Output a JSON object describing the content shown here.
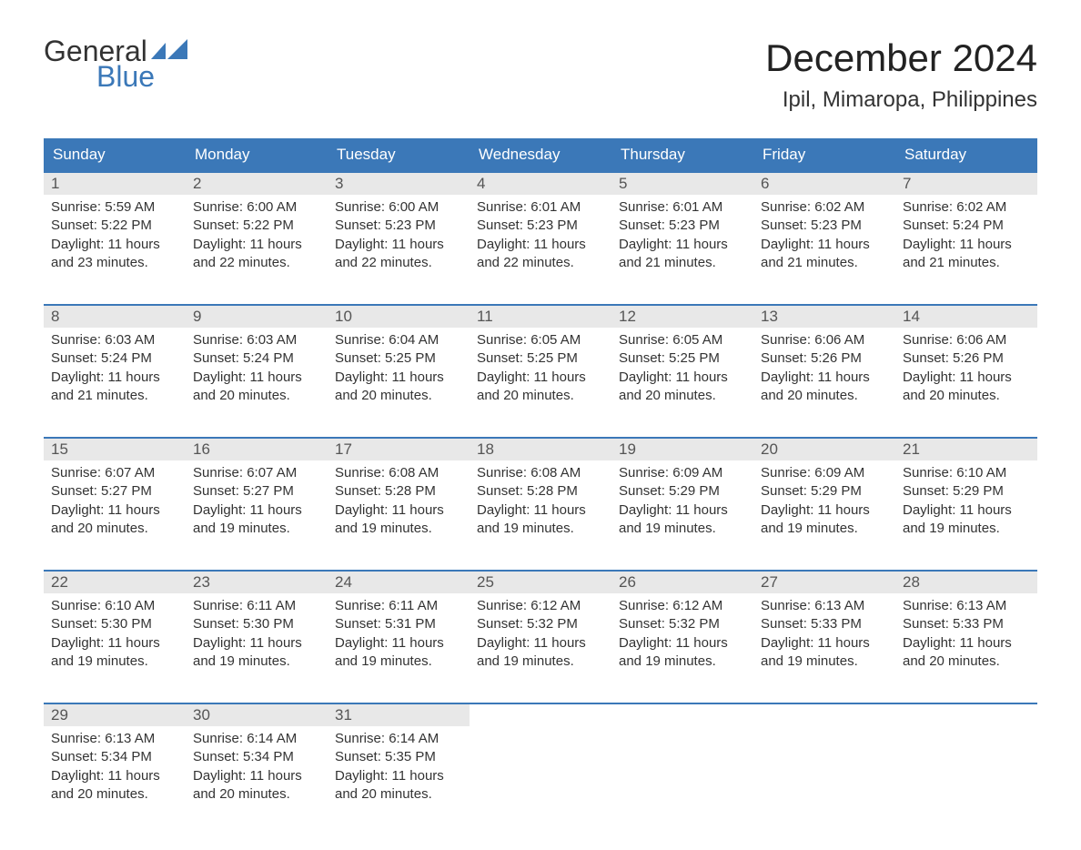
{
  "logo": {
    "word1": "General",
    "word2": "Blue"
  },
  "month_title": "December 2024",
  "location": "Ipil, Mimaropa, Philippines",
  "colors": {
    "header_bg": "#3b78b8",
    "header_text": "#ffffff",
    "daynum_bg": "#e8e8e8",
    "week_border": "#3b78b8",
    "logo_blue": "#3b78b8",
    "body_text": "#333333",
    "page_bg": "#ffffff"
  },
  "day_headers": [
    "Sunday",
    "Monday",
    "Tuesday",
    "Wednesday",
    "Thursday",
    "Friday",
    "Saturday"
  ],
  "weeks": [
    [
      {
        "n": "1",
        "sr": "5:59 AM",
        "ss": "5:22 PM",
        "dl1": "11 hours",
        "dl2": "and 23 minutes."
      },
      {
        "n": "2",
        "sr": "6:00 AM",
        "ss": "5:22 PM",
        "dl1": "11 hours",
        "dl2": "and 22 minutes."
      },
      {
        "n": "3",
        "sr": "6:00 AM",
        "ss": "5:23 PM",
        "dl1": "11 hours",
        "dl2": "and 22 minutes."
      },
      {
        "n": "4",
        "sr": "6:01 AM",
        "ss": "5:23 PM",
        "dl1": "11 hours",
        "dl2": "and 22 minutes."
      },
      {
        "n": "5",
        "sr": "6:01 AM",
        "ss": "5:23 PM",
        "dl1": "11 hours",
        "dl2": "and 21 minutes."
      },
      {
        "n": "6",
        "sr": "6:02 AM",
        "ss": "5:23 PM",
        "dl1": "11 hours",
        "dl2": "and 21 minutes."
      },
      {
        "n": "7",
        "sr": "6:02 AM",
        "ss": "5:24 PM",
        "dl1": "11 hours",
        "dl2": "and 21 minutes."
      }
    ],
    [
      {
        "n": "8",
        "sr": "6:03 AM",
        "ss": "5:24 PM",
        "dl1": "11 hours",
        "dl2": "and 21 minutes."
      },
      {
        "n": "9",
        "sr": "6:03 AM",
        "ss": "5:24 PM",
        "dl1": "11 hours",
        "dl2": "and 20 minutes."
      },
      {
        "n": "10",
        "sr": "6:04 AM",
        "ss": "5:25 PM",
        "dl1": "11 hours",
        "dl2": "and 20 minutes."
      },
      {
        "n": "11",
        "sr": "6:05 AM",
        "ss": "5:25 PM",
        "dl1": "11 hours",
        "dl2": "and 20 minutes."
      },
      {
        "n": "12",
        "sr": "6:05 AM",
        "ss": "5:25 PM",
        "dl1": "11 hours",
        "dl2": "and 20 minutes."
      },
      {
        "n": "13",
        "sr": "6:06 AM",
        "ss": "5:26 PM",
        "dl1": "11 hours",
        "dl2": "and 20 minutes."
      },
      {
        "n": "14",
        "sr": "6:06 AM",
        "ss": "5:26 PM",
        "dl1": "11 hours",
        "dl2": "and 20 minutes."
      }
    ],
    [
      {
        "n": "15",
        "sr": "6:07 AM",
        "ss": "5:27 PM",
        "dl1": "11 hours",
        "dl2": "and 20 minutes."
      },
      {
        "n": "16",
        "sr": "6:07 AM",
        "ss": "5:27 PM",
        "dl1": "11 hours",
        "dl2": "and 19 minutes."
      },
      {
        "n": "17",
        "sr": "6:08 AM",
        "ss": "5:28 PM",
        "dl1": "11 hours",
        "dl2": "and 19 minutes."
      },
      {
        "n": "18",
        "sr": "6:08 AM",
        "ss": "5:28 PM",
        "dl1": "11 hours",
        "dl2": "and 19 minutes."
      },
      {
        "n": "19",
        "sr": "6:09 AM",
        "ss": "5:29 PM",
        "dl1": "11 hours",
        "dl2": "and 19 minutes."
      },
      {
        "n": "20",
        "sr": "6:09 AM",
        "ss": "5:29 PM",
        "dl1": "11 hours",
        "dl2": "and 19 minutes."
      },
      {
        "n": "21",
        "sr": "6:10 AM",
        "ss": "5:29 PM",
        "dl1": "11 hours",
        "dl2": "and 19 minutes."
      }
    ],
    [
      {
        "n": "22",
        "sr": "6:10 AM",
        "ss": "5:30 PM",
        "dl1": "11 hours",
        "dl2": "and 19 minutes."
      },
      {
        "n": "23",
        "sr": "6:11 AM",
        "ss": "5:30 PM",
        "dl1": "11 hours",
        "dl2": "and 19 minutes."
      },
      {
        "n": "24",
        "sr": "6:11 AM",
        "ss": "5:31 PM",
        "dl1": "11 hours",
        "dl2": "and 19 minutes."
      },
      {
        "n": "25",
        "sr": "6:12 AM",
        "ss": "5:32 PM",
        "dl1": "11 hours",
        "dl2": "and 19 minutes."
      },
      {
        "n": "26",
        "sr": "6:12 AM",
        "ss": "5:32 PM",
        "dl1": "11 hours",
        "dl2": "and 19 minutes."
      },
      {
        "n": "27",
        "sr": "6:13 AM",
        "ss": "5:33 PM",
        "dl1": "11 hours",
        "dl2": "and 19 minutes."
      },
      {
        "n": "28",
        "sr": "6:13 AM",
        "ss": "5:33 PM",
        "dl1": "11 hours",
        "dl2": "and 20 minutes."
      }
    ],
    [
      {
        "n": "29",
        "sr": "6:13 AM",
        "ss": "5:34 PM",
        "dl1": "11 hours",
        "dl2": "and 20 minutes."
      },
      {
        "n": "30",
        "sr": "6:14 AM",
        "ss": "5:34 PM",
        "dl1": "11 hours",
        "dl2": "and 20 minutes."
      },
      {
        "n": "31",
        "sr": "6:14 AM",
        "ss": "5:35 PM",
        "dl1": "11 hours",
        "dl2": "and 20 minutes."
      },
      null,
      null,
      null,
      null
    ]
  ],
  "labels": {
    "sunrise_prefix": "Sunrise: ",
    "sunset_prefix": "Sunset: ",
    "daylight_prefix": "Daylight: "
  }
}
